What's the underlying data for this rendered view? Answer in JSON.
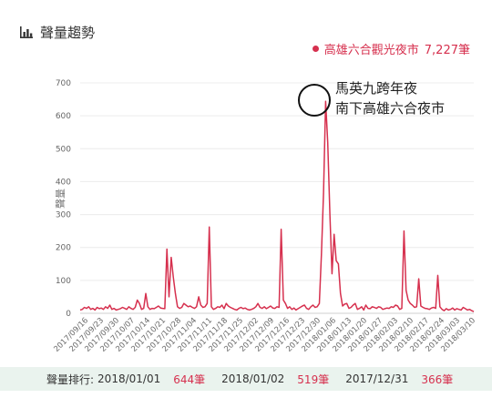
{
  "header": {
    "title": "聲量趨勢",
    "icon": "bar-chart-icon"
  },
  "legend": {
    "label": "高雄六合觀光夜市",
    "count": "7,227筆",
    "color": "#d6304e"
  },
  "annotation": {
    "line1": "馬英九跨年夜",
    "line2": "南下高雄六合夜市"
  },
  "footer": {
    "label": "聲量排行:",
    "items": [
      {
        "date": "2018/01/01",
        "count": "644筆"
      },
      {
        "date": "2018/01/02",
        "count": "519筆"
      },
      {
        "date": "2017/12/31",
        "count": "366筆"
      }
    ]
  },
  "chart_data": {
    "type": "line",
    "title": "",
    "xlabel": "",
    "ylabel": "聲量",
    "ylim": [
      0,
      700
    ],
    "yticks": [
      0,
      100,
      200,
      300,
      400,
      500,
      600,
      700
    ],
    "grid": true,
    "legend_position": "top-right",
    "x_tick_labels": [
      "2017/09/16",
      "2017/09/23",
      "2017/09/30",
      "2017/10/07",
      "2017/10/14",
      "2017/10/21",
      "2017/10/28",
      "2017/11/04",
      "2017/11/11",
      "2017/11/18",
      "2017/11/25",
      "2017/12/02",
      "2017/12/09",
      "2017/12/16",
      "2017/12/23",
      "2017/12/30",
      "2018/01/06",
      "2018/01/13",
      "2018/01/20",
      "2018/01/27",
      "2018/02/03",
      "2018/02/10",
      "2018/02/17",
      "2018/02/24",
      "2018/03/03",
      "2018/03/10"
    ],
    "series": [
      {
        "name": "高雄六合觀光夜市",
        "color": "#d6304e",
        "values": [
          10,
          12,
          18,
          15,
          20,
          12,
          15,
          10,
          18,
          14,
          16,
          12,
          20,
          15,
          25,
          12,
          15,
          10,
          12,
          14,
          18,
          15,
          12,
          20,
          15,
          12,
          18,
          40,
          30,
          12,
          15,
          60,
          20,
          12,
          15,
          14,
          18,
          22,
          16,
          15,
          14,
          195,
          50,
          170,
          110,
          60,
          20,
          15,
          18,
          30,
          25,
          20,
          22,
          18,
          15,
          20,
          50,
          25,
          18,
          20,
          30,
          262,
          20,
          12,
          15,
          20,
          18,
          25,
          14,
          30,
          22,
          18,
          15,
          12,
          10,
          15,
          18,
          14,
          16,
          12,
          10,
          12,
          15,
          20,
          30,
          18,
          15,
          20,
          14,
          18,
          22,
          16,
          15,
          20,
          18,
          255,
          40,
          30,
          15,
          20,
          12,
          16,
          10,
          14,
          18,
          22,
          25,
          15,
          12,
          20,
          25,
          18,
          20,
          30,
          180,
          366,
          644,
          519,
          300,
          120,
          240,
          160,
          150,
          60,
          22,
          28,
          30,
          15,
          18,
          25,
          30,
          12,
          15,
          20,
          10,
          25,
          15,
          14,
          20,
          18,
          15,
          20,
          18,
          12,
          14,
          16,
          15,
          20,
          18,
          25,
          22,
          12,
          15,
          250,
          70,
          40,
          30,
          25,
          18,
          20,
          105,
          22,
          18,
          15,
          14,
          12,
          16,
          18,
          15,
          115,
          20,
          12,
          8,
          14,
          10,
          12,
          16,
          10,
          14,
          12,
          10,
          18,
          14,
          10,
          12,
          8,
          5
        ]
      }
    ]
  }
}
